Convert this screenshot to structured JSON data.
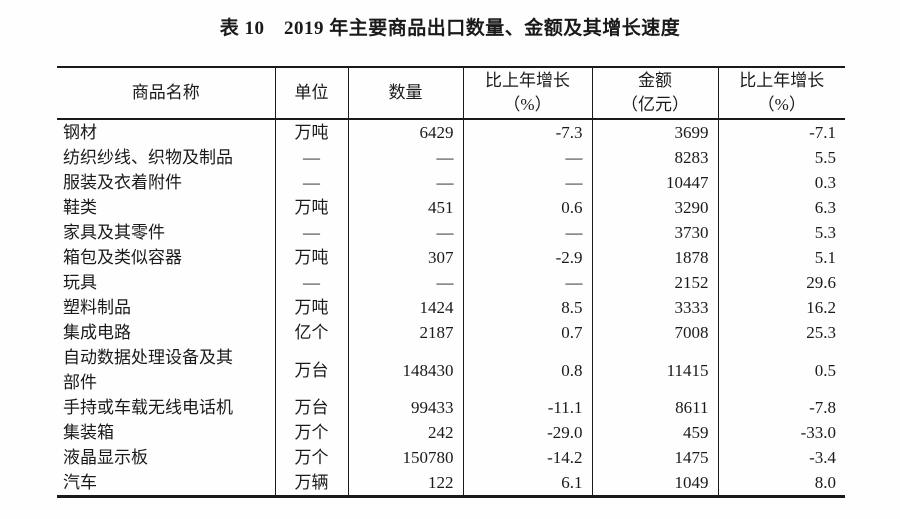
{
  "title": "表 10　2019 年主要商品出口数量、金额及其增长速度",
  "colors": {
    "text": "#1a1a1a",
    "border": "#1a1a1a",
    "background": "#fefefe"
  },
  "table": {
    "columns": [
      {
        "label": "商品名称",
        "label2": ""
      },
      {
        "label": "单位",
        "label2": ""
      },
      {
        "label": "数量",
        "label2": ""
      },
      {
        "label": "比上年增长",
        "label2": "（%）"
      },
      {
        "label": "金额",
        "label2": "（亿元）"
      },
      {
        "label": "比上年增长",
        "label2": "（%）"
      }
    ],
    "rows": [
      [
        "钢材",
        "万吨",
        "6429",
        "-7.3",
        "3699",
        "-7.1"
      ],
      [
        "纺织纱线、织物及制品",
        "—",
        "—",
        "—",
        "8283",
        "5.5"
      ],
      [
        "服装及衣着附件",
        "—",
        "—",
        "—",
        "10447",
        "0.3"
      ],
      [
        "鞋类",
        "万吨",
        "451",
        "0.6",
        "3290",
        "6.3"
      ],
      [
        "家具及其零件",
        "—",
        "—",
        "—",
        "3730",
        "5.3"
      ],
      [
        "箱包及类似容器",
        "万吨",
        "307",
        "-2.9",
        "1878",
        "5.1"
      ],
      [
        "玩具",
        "—",
        "—",
        "—",
        "2152",
        "29.6"
      ],
      [
        "塑料制品",
        "万吨",
        "1424",
        "8.5",
        "3333",
        "16.2"
      ],
      [
        "集成电路",
        "亿个",
        "2187",
        "0.7",
        "7008",
        "25.3"
      ],
      [
        "自动数据处理设备及其部件",
        "万台",
        "148430",
        "0.8",
        "11415",
        "0.5"
      ],
      [
        "手持或车载无线电话机",
        "万台",
        "99433",
        "-11.1",
        "8611",
        "-7.8"
      ],
      [
        "集装箱",
        "万个",
        "242",
        "-29.0",
        "459",
        "-33.0"
      ],
      [
        "液晶显示板",
        "万个",
        "150780",
        "-14.2",
        "1475",
        "-3.4"
      ],
      [
        "汽车",
        "万辆",
        "122",
        "6.1",
        "1049",
        "8.0"
      ]
    ]
  }
}
